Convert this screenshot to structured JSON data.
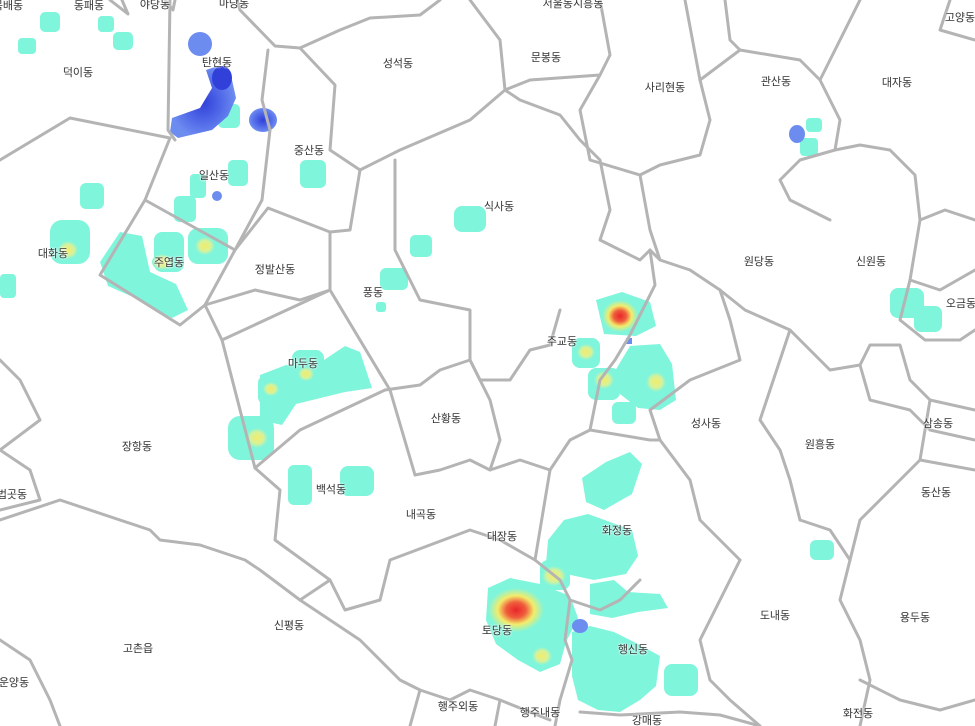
{
  "map": {
    "colors": {
      "background": "#ffffff",
      "border": "#b4b4b4",
      "label": "#333333",
      "heat_low": "#7ff5dc",
      "heat_mid": "#f3ec6a",
      "heat_high": "#f05c3c",
      "heat_peak": "#e8252a",
      "cold_mid": "#6d8cf0",
      "cold_high": "#3040d8"
    },
    "regions": [
      "목배동",
      "동패동",
      "야당동",
      "마당동",
      "서울동시흥동",
      "고양동",
      "탄현동",
      "덕이동",
      "성석동",
      "문봉동",
      "사리현동",
      "관산동",
      "대자동",
      "중산동",
      "일산동",
      "식사동",
      "원당동",
      "신원동",
      "오금동",
      "대화동",
      "주엽동",
      "정발산동",
      "풍동",
      "주교동",
      "마두동",
      "장항동",
      "산황동",
      "성사동",
      "원흥동",
      "삼송동",
      "백석동",
      "내곡동",
      "대장동",
      "화정동",
      "동산동",
      "법곳동",
      "도내동",
      "용두동",
      "신평동",
      "토당동",
      "행신동",
      "고촌읍",
      "화전동",
      "행주외동",
      "행주내동",
      "강매동",
      "운양동"
    ]
  }
}
